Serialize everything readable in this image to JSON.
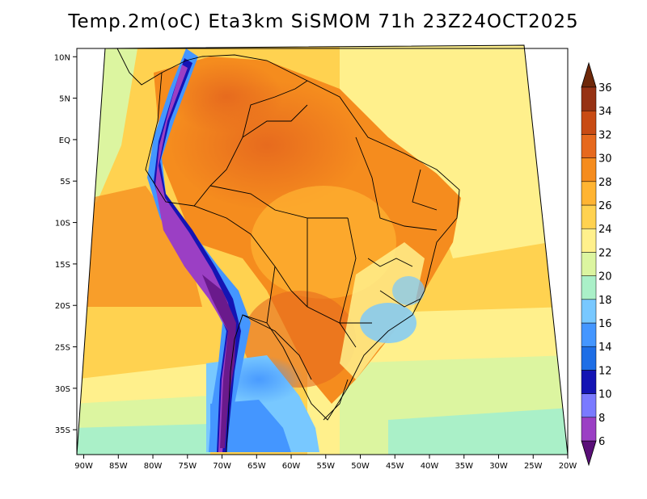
{
  "title": "Temp.2m(oC) Eta3km SiSMOM 71h 23Z24OCT2025",
  "map": {
    "lon_range": [
      -91,
      -20
    ],
    "lat_range": [
      -38,
      11
    ],
    "lon_ticks": [
      -90,
      -85,
      -80,
      -75,
      -70,
      -65,
      -60,
      -55,
      -50,
      -45,
      -40,
      -35,
      -30,
      -25,
      -20
    ],
    "lon_tick_labels": [
      "90W",
      "85W",
      "80W",
      "75W",
      "70W",
      "65W",
      "60W",
      "55W",
      "50W",
      "45W",
      "40W",
      "35W",
      "30W",
      "25W",
      "20W"
    ],
    "lat_ticks": [
      10,
      5,
      0,
      -5,
      -10,
      -15,
      -20,
      -25,
      -30,
      -35
    ],
    "lat_tick_labels": [
      "10N",
      "5N",
      "EQ",
      "5S",
      "10S",
      "15S",
      "20S",
      "25S",
      "30S",
      "35S"
    ]
  },
  "colorbar": {
    "levels": [
      6,
      8,
      10,
      12,
      14,
      16,
      18,
      20,
      22,
      24,
      26,
      28,
      30,
      32,
      34,
      36
    ],
    "labels": [
      "6",
      "8",
      "10",
      "12",
      "14",
      "16",
      "18",
      "20",
      "22",
      "24",
      "26",
      "28",
      "30",
      "32",
      "34",
      "36"
    ],
    "colors": [
      "#6a1a8c",
      "#9b3fc4",
      "#7a7aff",
      "#1414b4",
      "#1e6ee6",
      "#4496ff",
      "#78c8ff",
      "#aaf0c8",
      "#dcf5a0",
      "#fff08c",
      "#ffd250",
      "#ffb432",
      "#f58c1e",
      "#e6691e",
      "#c84b14",
      "#963214",
      "#6e280a"
    ],
    "under_color": "#5a0f78",
    "over_color": "#6e280a"
  }
}
